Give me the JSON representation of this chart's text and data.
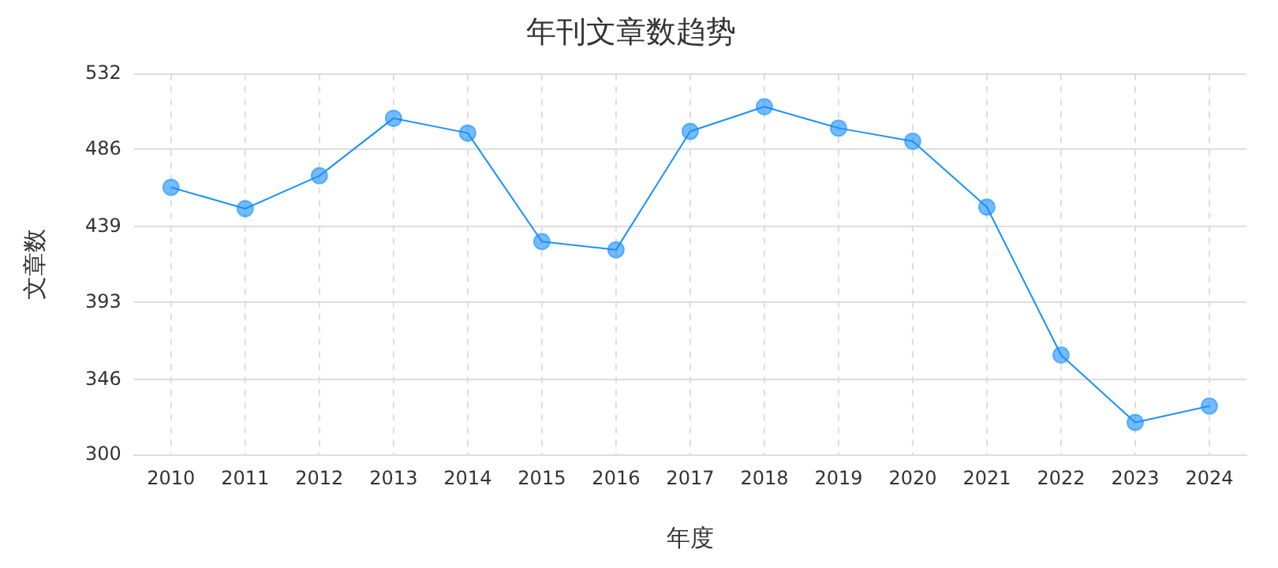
{
  "chart_data": {
    "type": "line",
    "title": "年刊文章数趋势",
    "xlabel": "年度",
    "ylabel": "文章数",
    "categories": [
      "2010",
      "2011",
      "2012",
      "2013",
      "2014",
      "2015",
      "2016",
      "2017",
      "2018",
      "2019",
      "2020",
      "2021",
      "2022",
      "2023",
      "2024"
    ],
    "series": [
      {
        "color": "#1890ff",
        "values": [
          463,
          450,
          470,
          505,
          496,
          430,
          425,
          497,
          512,
          499,
          491,
          451,
          361,
          320,
          330
        ]
      }
    ],
    "ylim": [
      300,
      532
    ],
    "yticks": [
      300,
      346,
      393,
      439,
      486,
      532
    ],
    "grid": true,
    "marker": "circle",
    "line_style": "solid",
    "legend": false
  }
}
